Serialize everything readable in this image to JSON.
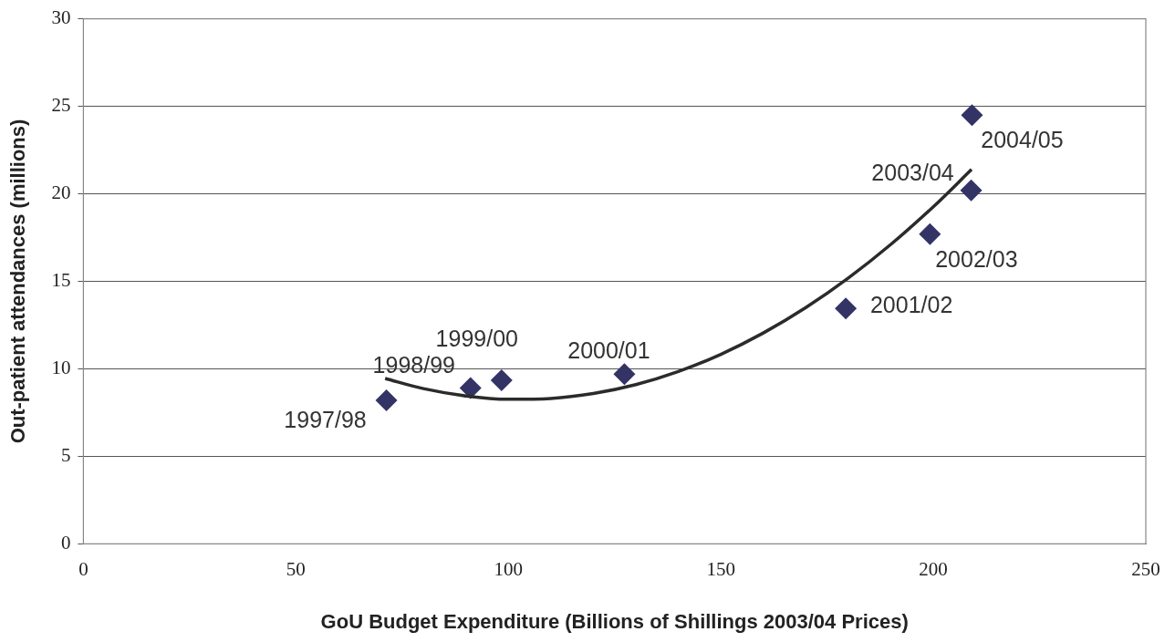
{
  "chart_data": {
    "type": "scatter",
    "xlabel": "GoU Budget Expenditure (Billions of Shillings 2003/04 Prices)",
    "ylabel": "Out-patient attendances (millions)",
    "xlim": [
      0,
      250
    ],
    "xticks": [
      0,
      50,
      100,
      150,
      200,
      250
    ],
    "ylim": [
      0,
      30
    ],
    "yticks": [
      0,
      5,
      10,
      15,
      20,
      25,
      30
    ],
    "grid": "y",
    "legend": false,
    "marker": "diamond",
    "series": [
      {
        "color": "#333366",
        "x": [
          71.3,
          91.1,
          98.4,
          127.3,
          179.4,
          199.2,
          208.9,
          209.1
        ],
        "values": [
          8.2,
          8.9,
          9.35,
          9.7,
          13.45,
          17.7,
          20.2,
          24.5
        ]
      },
      {
        "type": "line",
        "color": "#2b2b2b",
        "marker": "none",
        "x": [
          71,
          80,
          90,
          100,
          110,
          120,
          130,
          140,
          150,
          160,
          170,
          180,
          190,
          200,
          209
        ],
        "values": [
          9.45,
          8.87,
          8.45,
          8.26,
          8.31,
          8.59,
          9.1,
          9.85,
          10.83,
          12.05,
          13.5,
          15.19,
          17.11,
          19.26,
          21.39
        ]
      }
    ],
    "annotations": [
      {
        "text": "1997/98",
        "x": 71.3,
        "y": 8.2
      },
      {
        "text": "1998/99",
        "x": 91.1,
        "y": 8.9
      },
      {
        "text": "1999/00",
        "x": 98.4,
        "y": 9.35
      },
      {
        "text": "2000/01",
        "x": 127.3,
        "y": 9.7
      },
      {
        "text": "2001/02",
        "x": 179.4,
        "y": 13.45
      },
      {
        "text": "2002/03",
        "x": 199.2,
        "y": 17.7
      },
      {
        "text": "2003/04",
        "x": 208.9,
        "y": 20.2
      },
      {
        "text": "2004/05",
        "x": 209.1,
        "y": 24.5
      }
    ]
  }
}
